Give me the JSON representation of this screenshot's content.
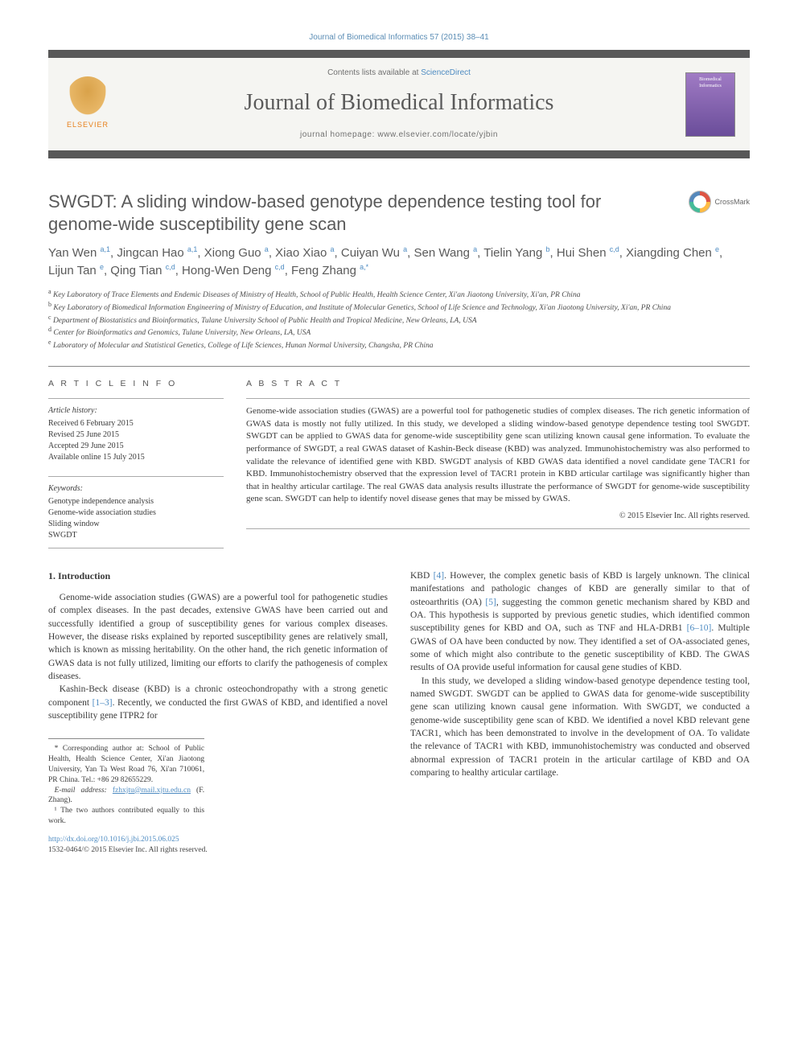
{
  "runhead": "Journal of Biomedical Informatics 57 (2015) 38–41",
  "masthead": {
    "contents_prefix": "Contents lists available at ",
    "contents_link": "ScienceDirect",
    "journal_name": "Journal of Biomedical Informatics",
    "homepage_prefix": "journal homepage: ",
    "homepage_url": "www.elsevier.com/locate/yjbin",
    "elsevier_label": "ELSEVIER",
    "cover_text": "Biomedical Informatics"
  },
  "crossmark_label": "CrossMark",
  "article_title": "SWGDT: A sliding window-based genotype dependence testing tool for genome-wide susceptibility gene scan",
  "authors_html": "Yan Wen <sup>a,1</sup>, Jingcan Hao <sup>a,1</sup>, Xiong Guo <sup>a</sup>, Xiao Xiao <sup>a</sup>, Cuiyan Wu <sup>a</sup>, Sen Wang <sup>a</sup>, Tielin Yang <sup>b</sup>, Hui Shen <sup>c,d</sup>, Xiangding Chen <sup>e</sup>, Lijun Tan <sup>e</sup>, Qing Tian <sup>c,d</sup>, Hong-Wen Deng <sup>c,d</sup>, Feng Zhang <sup>a,*</sup>",
  "affiliations": [
    {
      "tag": "a",
      "text": "Key Laboratory of Trace Elements and Endemic Diseases of Ministry of Health, School of Public Health, Health Science Center, Xi'an Jiaotong University, Xi'an, PR China"
    },
    {
      "tag": "b",
      "text": "Key Laboratory of Biomedical Information Engineering of Ministry of Education, and Institute of Molecular Genetics, School of Life Science and Technology, Xi'an Jiaotong University, Xi'an, PR China"
    },
    {
      "tag": "c",
      "text": "Department of Biostatistics and Bioinformatics, Tulane University School of Public Health and Tropical Medicine, New Orleans, LA, USA"
    },
    {
      "tag": "d",
      "text": "Center for Bioinformatics and Genomics, Tulane University, New Orleans, LA, USA"
    },
    {
      "tag": "e",
      "text": "Laboratory of Molecular and Statistical Genetics, College of Life Sciences, Hunan Normal University, Changsha, PR China"
    }
  ],
  "artinfo": {
    "heading": "A R T I C L E   I N F O",
    "history_label": "Article history:",
    "history": [
      "Received 6 February 2015",
      "Revised 25 June 2015",
      "Accepted 29 June 2015",
      "Available online 15 July 2015"
    ],
    "keywords_label": "Keywords:",
    "keywords": [
      "Genotype independence analysis",
      "Genome-wide association studies",
      "Sliding window",
      "SWGDT"
    ]
  },
  "abstract": {
    "heading": "A B S T R A C T",
    "text": "Genome-wide association studies (GWAS) are a powerful tool for pathogenetic studies of complex diseases. The rich genetic information of GWAS data is mostly not fully utilized. In this study, we developed a sliding window-based genotype dependence testing tool SWGDT. SWGDT can be applied to GWAS data for genome-wide susceptibility gene scan utilizing known causal gene information. To evaluate the performance of SWGDT, a real GWAS dataset of Kashin-Beck disease (KBD) was analyzed. Immunohistochemistry was also performed to validate the relevance of identified gene with KBD. SWGDT analysis of KBD GWAS data identified a novel candidate gene TACR1 for KBD. Immunohistochemistry observed that the expression level of TACR1 protein in KBD articular cartilage was significantly higher than that in healthy articular cartilage. The real GWAS data analysis results illustrate the performance of SWGDT for genome-wide susceptibility gene scan. SWGDT can help to identify novel disease genes that may be missed by GWAS.",
    "copyright": "© 2015 Elsevier Inc. All rights reserved."
  },
  "body": {
    "section_heading": "1. Introduction",
    "p1": "Genome-wide association studies (GWAS) are a powerful tool for pathogenetic studies of complex diseases. In the past decades, extensive GWAS have been carried out and successfully identified a group of susceptibility genes for various complex diseases. However, the disease risks explained by reported susceptibility genes are relatively small, which is known as missing heritability. On the other hand, the rich genetic information of GWAS data is not fully utilized, limiting our efforts to clarify the pathogenesis of complex diseases.",
    "p2_pre": "Kashin-Beck disease (KBD) is a chronic osteochondropathy with a strong genetic component ",
    "p2_ref1": "[1–3]",
    "p2_post": ". Recently, we conducted the first GWAS of KBD, and identified a novel susceptibility gene ITPR2 for",
    "p3_a": "KBD ",
    "p3_ref4": "[4]",
    "p3_b": ". However, the complex genetic basis of KBD is largely unknown. The clinical manifestations and pathologic changes of KBD are generally similar to that of osteoarthritis (OA) ",
    "p3_ref5": "[5]",
    "p3_c": ", suggesting the common genetic mechanism shared by KBD and OA. This hypothesis is supported by previous genetic studies, which identified common susceptibility genes for KBD and OA, such as TNF and HLA-DRB1 ",
    "p3_ref610": "[6–10]",
    "p3_d": ". Multiple GWAS of OA have been conducted by now. They identified a set of OA-associated genes, some of which might also contribute to the genetic susceptibility of KBD. The GWAS results of OA provide useful information for causal gene studies of KBD.",
    "p4": "In this study, we developed a sliding window-based genotype dependence testing tool, named SWGDT. SWGDT can be applied to GWAS data for genome-wide susceptibility gene scan utilizing known causal gene information. With SWGDT, we conducted a genome-wide susceptibility gene scan of KBD. We identified a novel KBD relevant gene TACR1, which has been demonstrated to involve in the development of OA. To validate the relevance of TACR1 with KBD, immunohistochemistry was conducted and observed abnormal expression of TACR1 protein in the articular cartilage of KBD and OA comparing to healthy articular cartilage."
  },
  "footnotes": {
    "corr": "* Corresponding author at: School of Public Health, Health Science Center, Xi'an Jiaotong University, Yan Ta West Road 76, Xi'an 710061, PR China. Tel.: +86 29 82655229.",
    "email_label": "E-mail address: ",
    "email": "fzhxjtu@mail.xjtu.edu.cn",
    "email_suffix": " (F. Zhang).",
    "equal": "¹ The two authors contributed equally to this work."
  },
  "footer": {
    "doi": "http://dx.doi.org/10.1016/j.jbi.2015.06.025",
    "issn_line": "1532-0464/© 2015 Elsevier Inc. All rights reserved."
  },
  "colors": {
    "link": "#4f8cc2",
    "bar": "#585858",
    "text": "#3a3a3a",
    "elsevier_orange": "#e8801b"
  }
}
